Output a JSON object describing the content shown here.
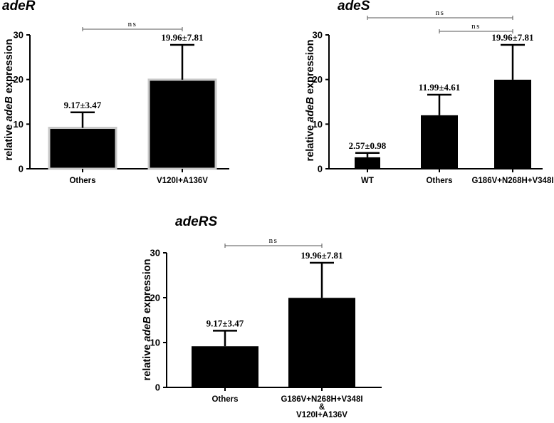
{
  "chart_data": [
    {
      "type": "bar",
      "title": "adeR",
      "ylabel_pre": "relative ",
      "ylabel_gene": "adeB",
      "ylabel_post": " expression",
      "ylim": [
        0,
        30
      ],
      "yticks": [
        0,
        10,
        20,
        30
      ],
      "categories": [
        [
          "Others"
        ],
        [
          "V120I+A136V"
        ]
      ],
      "values": [
        9.17,
        19.96
      ],
      "errors": [
        3.47,
        7.81
      ],
      "value_labels": [
        "9.17±3.47",
        "19.96±7.81"
      ],
      "significance": [
        {
          "from": 0,
          "to": 1,
          "label": "ns"
        }
      ],
      "bar_color": "#000000",
      "bar_outline": "#c8c8c8"
    },
    {
      "type": "bar",
      "title": "adeS",
      "ylabel_pre": "relative ",
      "ylabel_gene": "adeB",
      "ylabel_post": " expression",
      "ylim": [
        0,
        30
      ],
      "yticks": [
        0,
        10,
        20,
        30
      ],
      "categories": [
        [
          "WT"
        ],
        [
          "Others"
        ],
        [
          "G186V+N268H+V348I"
        ]
      ],
      "values": [
        2.57,
        11.99,
        19.96
      ],
      "errors": [
        0.98,
        4.61,
        7.81
      ],
      "value_labels": [
        "2.57±0.98",
        "11.99±4.61",
        "19.96±7.81"
      ],
      "significance": [
        {
          "from": 0,
          "to": 2,
          "label": "ns"
        },
        {
          "from": 1,
          "to": 2,
          "label": "ns"
        }
      ],
      "bar_color": "#000000",
      "bar_outline": "#000000"
    },
    {
      "type": "bar",
      "title": "adeRS",
      "ylabel_pre": "relative ",
      "ylabel_gene": "adeB",
      "ylabel_post": " expression",
      "ylim": [
        0,
        30
      ],
      "yticks": [
        0,
        10,
        20,
        30
      ],
      "categories": [
        [
          "Others"
        ],
        [
          "G186V+N268H+V348I",
          "&",
          "V120I+A136V"
        ]
      ],
      "values": [
        9.17,
        19.96
      ],
      "errors": [
        3.47,
        7.81
      ],
      "value_labels": [
        "9.17±3.47",
        "19.96±7.81"
      ],
      "significance": [
        {
          "from": 0,
          "to": 1,
          "label": "ns"
        }
      ],
      "bar_color": "#000000",
      "bar_outline": "#000000"
    }
  ]
}
